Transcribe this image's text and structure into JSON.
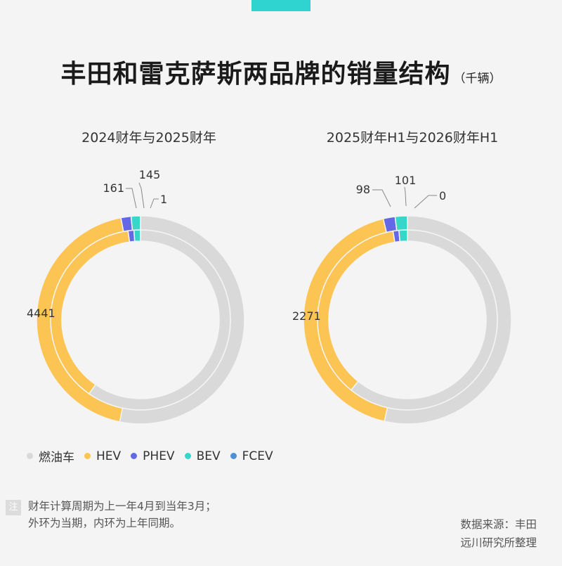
{
  "title": "丰田和雷克萨斯两品牌的销量结构",
  "unit": "（千辆）",
  "colors": {
    "燃油车": "#d9d9d9",
    "HEV": "#fcc452",
    "PHEV": "#6467e6",
    "BEV": "#38d6c9",
    "FCEV": "#4f8fd6"
  },
  "legend": [
    {
      "label": "燃油车",
      "color": "#d9d9d9"
    },
    {
      "label": "HEV",
      "color": "#fcc452"
    },
    {
      "label": "PHEV",
      "color": "#6467e6"
    },
    {
      "label": "BEV",
      "color": "#38d6c9"
    },
    {
      "label": "FCEV",
      "color": "#4f8fd6"
    }
  ],
  "chart_data": [
    {
      "type": "pie",
      "subtype": "double-donut",
      "title": "2024财年与2025财年",
      "categories": [
        "燃油车",
        "HEV",
        "PHEV",
        "BEV",
        "FCEV"
      ],
      "series": [
        {
          "ring": "outer",
          "values": [
            5400,
            4441,
            161,
            145,
            1
          ]
        },
        {
          "ring": "inner",
          "values": [
            6250,
            3990,
            110,
            120,
            2
          ]
        }
      ],
      "value_labels": {
        "HEV": "4441",
        "PHEV": "161",
        "BEV": "145",
        "FCEV": "1"
      }
    },
    {
      "type": "pie",
      "subtype": "double-donut",
      "title": "2025财年H1与2026财年H1",
      "categories": [
        "燃油车",
        "HEV",
        "PHEV",
        "BEV",
        "FCEV"
      ],
      "series": [
        {
          "ring": "outer",
          "values": [
            2850,
            2271,
            98,
            101,
            0
          ]
        },
        {
          "ring": "inner",
          "values": [
            3200,
            1930,
            55,
            80,
            0
          ]
        }
      ],
      "value_labels": {
        "HEV": "2271",
        "PHEV": "98",
        "BEV": "101",
        "FCEV": "0"
      }
    }
  ],
  "note": {
    "badge": "注",
    "lines": [
      "财年计算周期为上一年4月到当年3月；",
      "外环为当期，内环为上年同期。"
    ]
  },
  "source": {
    "lines": [
      "数据来源：丰田",
      "远川研究所整理"
    ]
  }
}
